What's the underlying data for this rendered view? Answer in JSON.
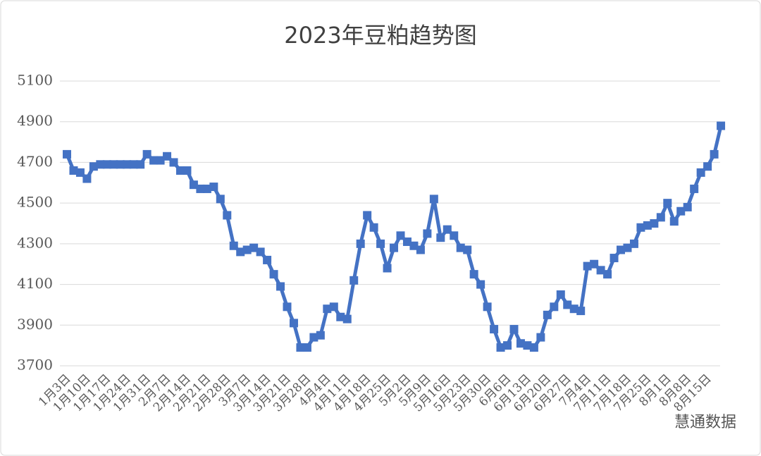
{
  "chart_data": {
    "type": "line",
    "title": "2023年豆粕趋势图",
    "watermark": "慧通数据",
    "color": "#4472c4",
    "grid": true,
    "ylim": [
      3700,
      5100
    ],
    "yticks": [
      3700,
      3900,
      4100,
      4300,
      4500,
      4700,
      4900,
      5100
    ],
    "categories": [
      "1月3日",
      null,
      null,
      "1月10日",
      null,
      null,
      "1月17日",
      null,
      null,
      "1月24日",
      null,
      null,
      "1月31日",
      null,
      null,
      "2月7日",
      null,
      null,
      "2月14日",
      null,
      null,
      "2月21日",
      null,
      null,
      "2月28日",
      null,
      null,
      "3月7日",
      null,
      null,
      "3月14日",
      null,
      null,
      "3月21日",
      null,
      null,
      "3月28日",
      null,
      null,
      "4月4日",
      null,
      null,
      "4月11日",
      null,
      null,
      "4月18日",
      null,
      null,
      "4月25日",
      null,
      null,
      "5月2日",
      null,
      null,
      "5月9日",
      null,
      null,
      "5月16日",
      null,
      null,
      "5月23日",
      null,
      null,
      "5月30日",
      null,
      null,
      "6月6日",
      null,
      null,
      "6月13日",
      null,
      null,
      "6月20日",
      null,
      null,
      "6月27日",
      null,
      null,
      "7月4日",
      null,
      null,
      "7月11日",
      null,
      null,
      "7月18日",
      null,
      null,
      "7月25日",
      null,
      null,
      "8月1日",
      null,
      null,
      "8月8日",
      null,
      null,
      "8月15日",
      null,
      null
    ],
    "values": [
      4740,
      4660,
      4650,
      4620,
      4680,
      4690,
      4690,
      4690,
      4690,
      4690,
      4690,
      4690,
      4740,
      4710,
      4710,
      4730,
      4700,
      4660,
      4660,
      4590,
      4570,
      4570,
      4580,
      4520,
      4440,
      4290,
      4260,
      4270,
      4280,
      4260,
      4220,
      4150,
      4090,
      3990,
      3910,
      3790,
      3790,
      3840,
      3850,
      3980,
      3990,
      3940,
      3930,
      4120,
      4300,
      4440,
      4380,
      4300,
      4180,
      4280,
      4340,
      4310,
      4290,
      4270,
      4350,
      4520,
      4330,
      4370,
      4340,
      4280,
      4270,
      4150,
      4100,
      3990,
      3880,
      3790,
      3800,
      3880,
      3810,
      3800,
      3790,
      3840,
      3950,
      3990,
      4050,
      4000,
      3980,
      3970,
      4190,
      4200,
      4170,
      4150,
      4230,
      4270,
      4280,
      4300,
      4380,
      4390,
      4400,
      4430,
      4500,
      4410,
      4460,
      4480,
      4570,
      4650,
      4680,
      4740,
      4880
    ]
  }
}
